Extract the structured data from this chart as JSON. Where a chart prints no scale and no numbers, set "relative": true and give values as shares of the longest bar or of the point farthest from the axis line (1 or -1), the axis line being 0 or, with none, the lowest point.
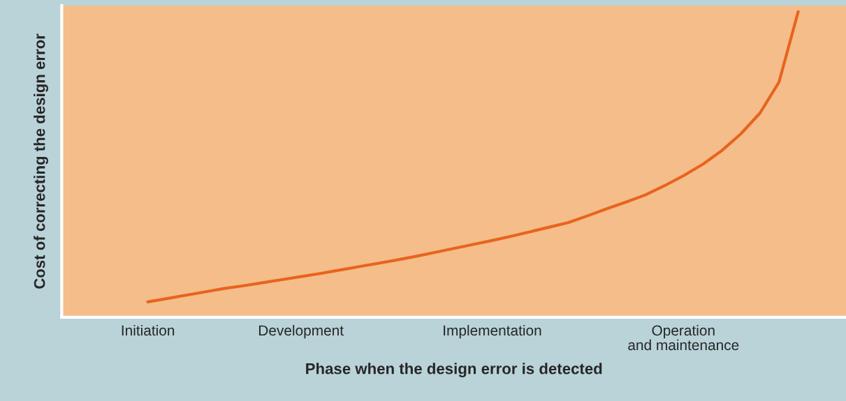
{
  "chart_data": {
    "type": "line",
    "relative": true,
    "xlabel": "Phase when the design error is detected",
    "ylabel": "Cost of correcting the design error",
    "categories": [
      null,
      null,
      null,
      null,
      "Initiation",
      null,
      null,
      null,
      null,
      null,
      null,
      null,
      "Development",
      null,
      null,
      null,
      null,
      null,
      null,
      null,
      null,
      null,
      "Implementation",
      null,
      null,
      null,
      null,
      null,
      null,
      null,
      null,
      null,
      "Operation\nand maintenance",
      null,
      null,
      null,
      null,
      null,
      null,
      null,
      null
    ],
    "grid": false,
    "legend": false,
    "marker": "none",
    "line_style": "solid",
    "series": [
      {
        "color": "#e8641e",
        "values": [
          null,
          null,
          null,
          null,
          0.05,
          0.061,
          0.072,
          0.083,
          0.094,
          0.103,
          0.113,
          0.123,
          0.133,
          0.143,
          0.154,
          0.165,
          0.176,
          0.187,
          0.199,
          0.212,
          0.225,
          0.238,
          0.251,
          0.265,
          0.28,
          0.295,
          0.31,
          0.332,
          0.355,
          0.377,
          0.4,
          0.43,
          0.463,
          0.5,
          0.545,
          0.6,
          0.668,
          0.77,
          1.0,
          null,
          null
        ]
      }
    ]
  }
}
